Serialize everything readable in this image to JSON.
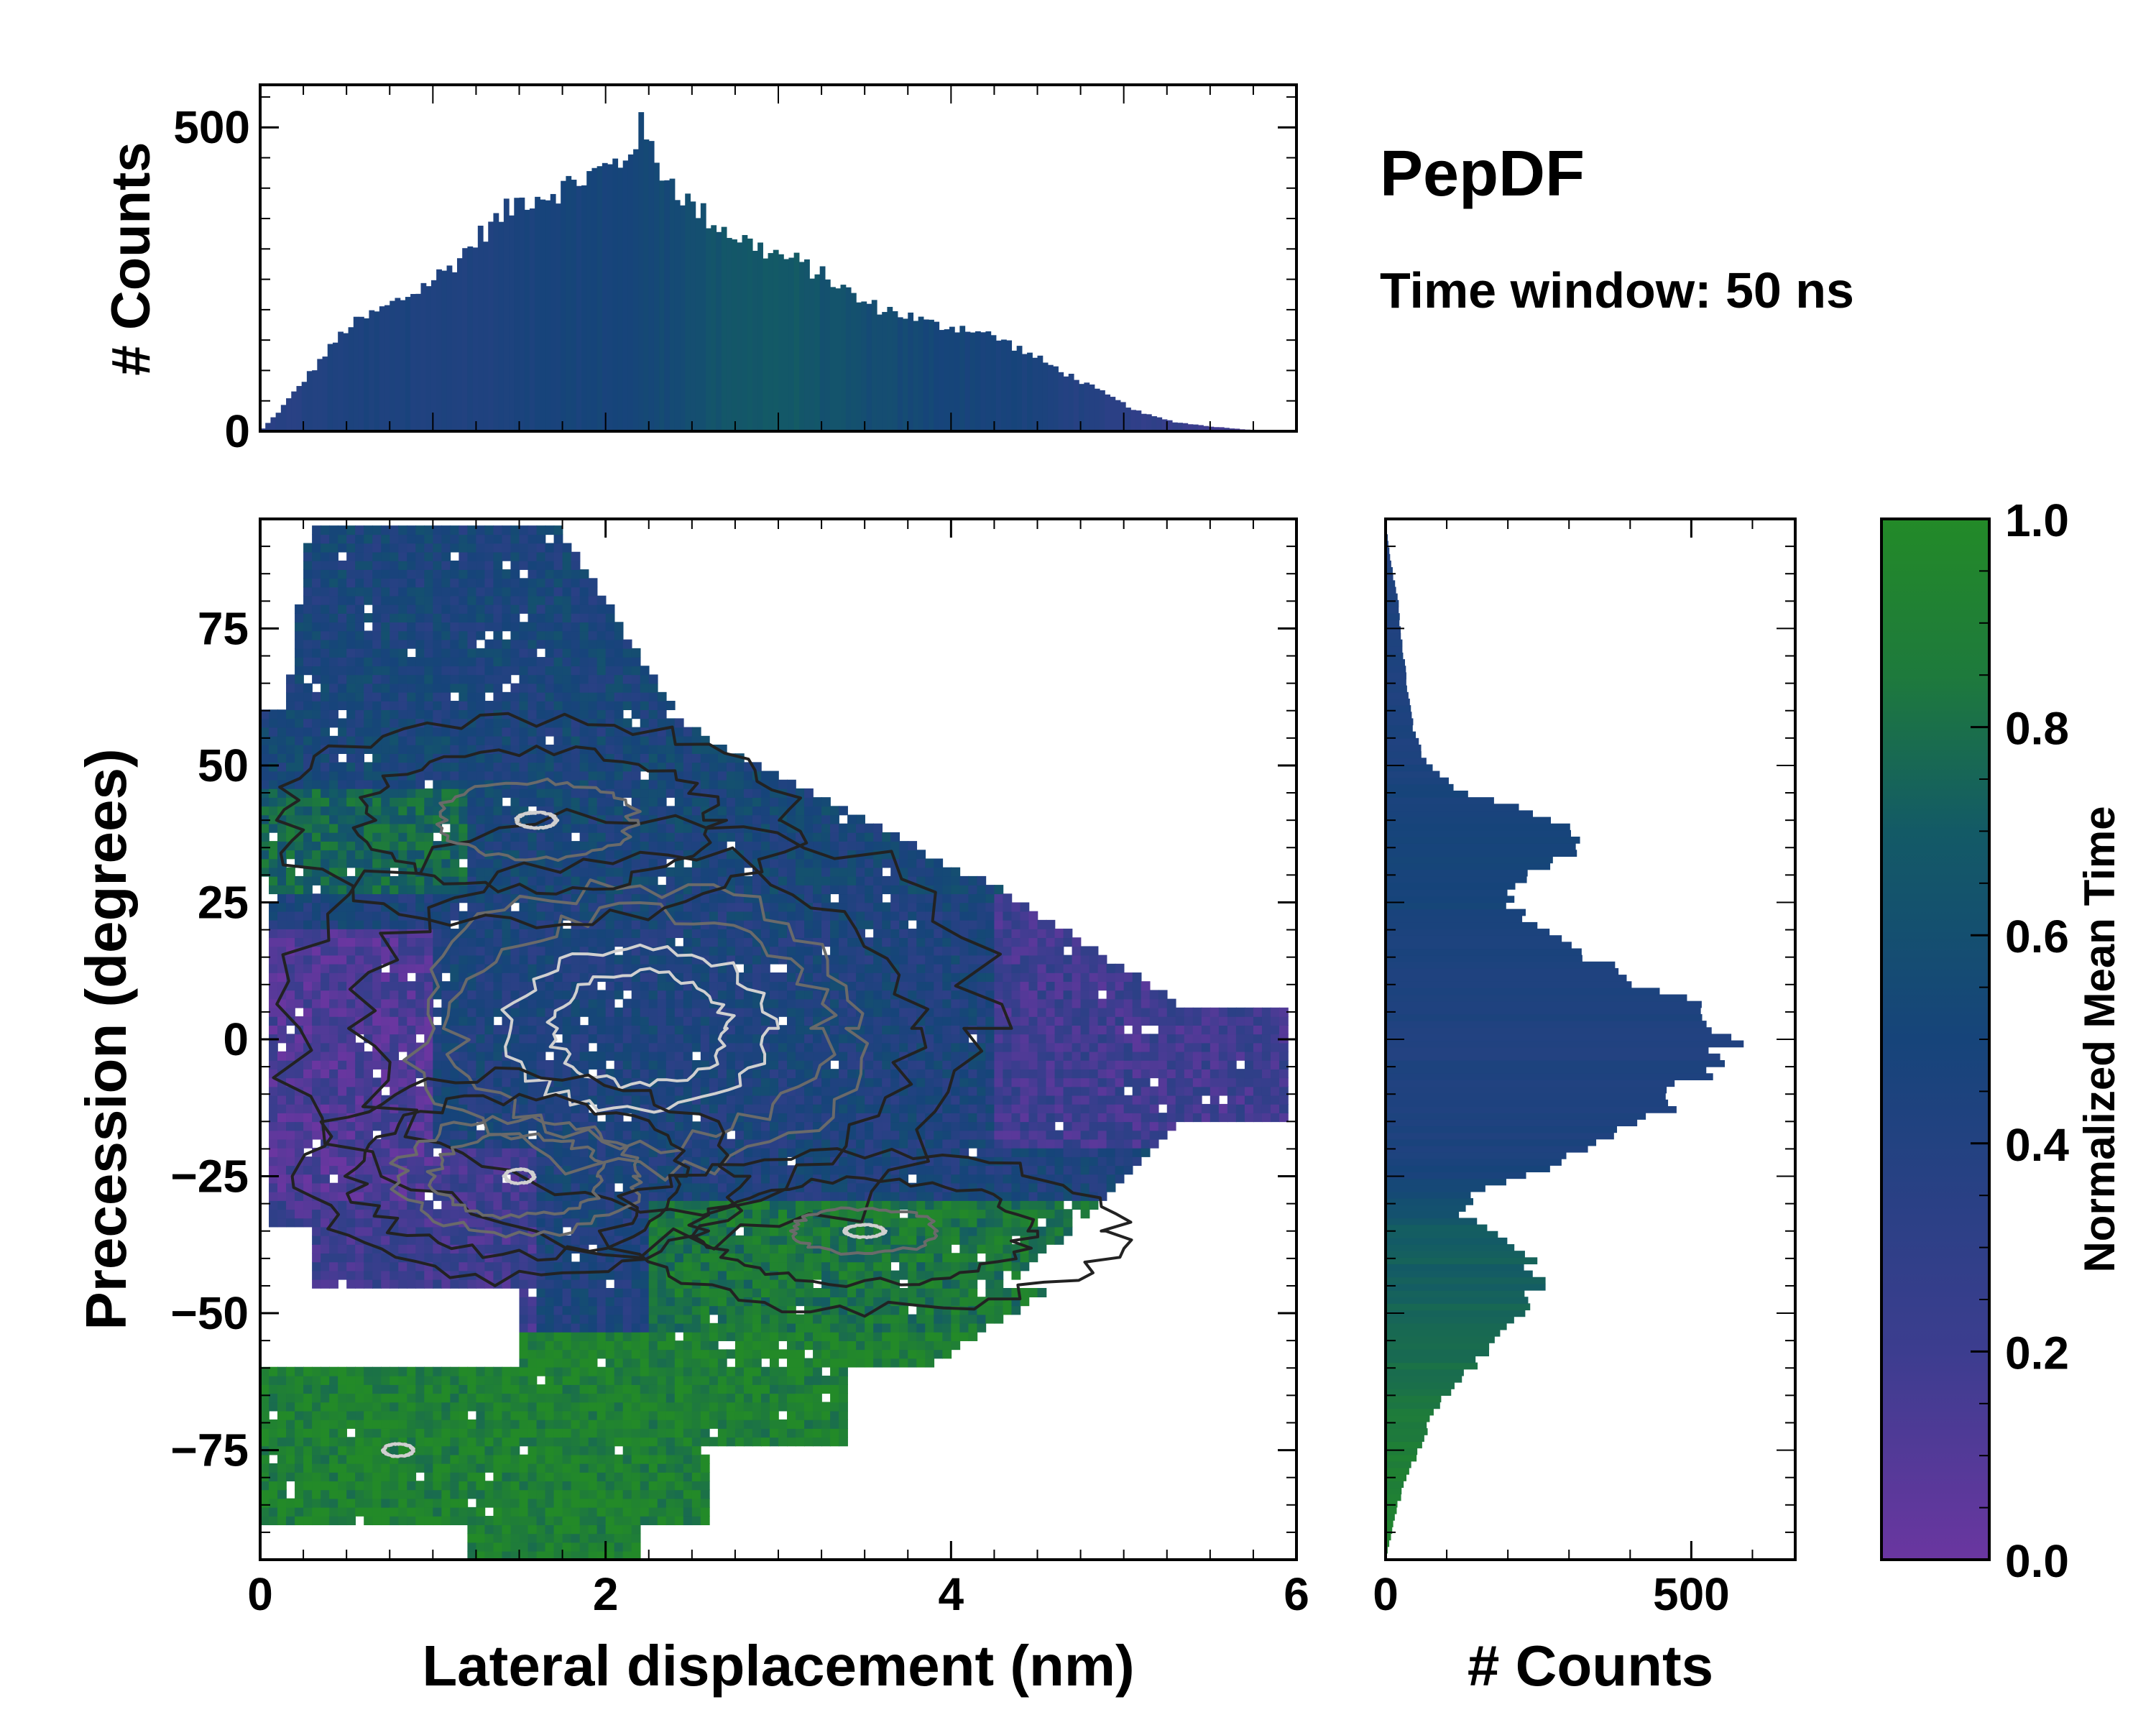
{
  "title": "PepDF",
  "subtitle": "Time window: 50 ns",
  "colors": {
    "cmap": [
      "#6a36a0",
      "#3c3d8f",
      "#16447a",
      "#135a66",
      "#1e7a3c",
      "#238a28"
    ],
    "contour_light": "#d0d0d0",
    "contour_mid": "#6a6a6a",
    "contour_dark": "#222222"
  },
  "chart_data": [
    {
      "type": "heatmap",
      "name": "joint",
      "xlabel": "Lateral displacement (nm)",
      "ylabel": "Precession (degrees)",
      "xlim": [
        0,
        6
      ],
      "ylim": [
        -95,
        95
      ],
      "xticks": [
        0,
        2,
        4,
        6
      ],
      "yticks": [
        -75,
        -50,
        -25,
        0,
        25,
        50,
        75
      ],
      "ytick_labels": [
        "−75",
        "−50",
        "−25",
        "0",
        "25",
        "50",
        "75"
      ],
      "description_of_data": "2D histogram of lateral displacement vs precession, colored by normalized mean time with density contours",
      "density_peaks": [
        {
          "x": 2.2,
          "y": 2,
          "weight": 1.0,
          "sx": 0.9,
          "sy": 18
        },
        {
          "x": 1.5,
          "y": -25,
          "weight": 0.7,
          "sx": 0.6,
          "sy": 9
        },
        {
          "x": 1.6,
          "y": 40,
          "weight": 0.45,
          "sx": 0.8,
          "sy": 10
        },
        {
          "x": 3.5,
          "y": -35,
          "weight": 0.4,
          "sx": 0.8,
          "sy": 8
        },
        {
          "x": 0.8,
          "y": -75,
          "weight": 0.15,
          "sx": 0.6,
          "sy": 8
        }
      ]
    },
    {
      "type": "bar",
      "name": "top-histogram",
      "ylabel": "# Counts",
      "xlim": [
        0,
        6
      ],
      "ylim": [
        0,
        570
      ],
      "yticks": [
        0,
        500
      ],
      "bin_width": 0.03,
      "profile_x": [
        0,
        0.1,
        0.3,
        0.5,
        0.7,
        0.9,
        1.1,
        1.3,
        1.5,
        1.7,
        1.9,
        2.1,
        2.2,
        2.3,
        2.5,
        2.7,
        2.9,
        3.1,
        3.3,
        3.5,
        3.7,
        3.9,
        4.1,
        4.3,
        4.5,
        4.7,
        4.9,
        5.1,
        5.3,
        5.5,
        5.7,
        5.9
      ],
      "profile_counts": [
        0,
        30,
        100,
        170,
        200,
        230,
        270,
        330,
        380,
        395,
        420,
        445,
        500,
        440,
        370,
        330,
        300,
        280,
        250,
        210,
        195,
        175,
        170,
        150,
        120,
        90,
        60,
        30,
        15,
        8,
        3,
        0
      ],
      "profile_time": [
        0.3,
        0.35,
        0.4,
        0.45,
        0.45,
        0.45,
        0.42,
        0.42,
        0.45,
        0.48,
        0.5,
        0.5,
        0.52,
        0.55,
        0.6,
        0.65,
        0.7,
        0.68,
        0.62,
        0.58,
        0.55,
        0.52,
        0.5,
        0.48,
        0.45,
        0.4,
        0.35,
        0.3,
        0.25,
        0.2,
        0.15,
        0.1
      ]
    },
    {
      "type": "bar",
      "name": "right-histogram",
      "xlabel": "# Counts",
      "xlim": [
        0,
        670
      ],
      "xticks": [
        0,
        500
      ],
      "ylim": [
        -95,
        95
      ],
      "bin_width": 1.2,
      "profile_y": [
        -95,
        -90,
        -85,
        -80,
        -75,
        -70,
        -65,
        -60,
        -55,
        -50,
        -45,
        -40,
        -35,
        -32,
        -28,
        -25,
        -20,
        -15,
        -10,
        -5,
        0,
        5,
        10,
        15,
        20,
        25,
        30,
        35,
        40,
        45,
        50,
        55,
        60,
        65,
        70,
        75,
        80,
        85,
        90,
        95
      ],
      "profile_counts": [
        0,
        10,
        20,
        35,
        55,
        70,
        100,
        140,
        180,
        220,
        250,
        235,
        180,
        120,
        150,
        230,
        330,
        430,
        480,
        530,
        580,
        520,
        420,
        330,
        250,
        200,
        230,
        320,
        280,
        130,
        70,
        50,
        40,
        35,
        30,
        25,
        20,
        12,
        5,
        0
      ],
      "profile_time": [
        0.95,
        0.92,
        0.92,
        0.9,
        0.88,
        0.85,
        0.82,
        0.8,
        0.78,
        0.75,
        0.72,
        0.72,
        0.7,
        0.6,
        0.55,
        0.48,
        0.45,
        0.43,
        0.42,
        0.42,
        0.42,
        0.43,
        0.45,
        0.45,
        0.48,
        0.5,
        0.5,
        0.5,
        0.5,
        0.48,
        0.45,
        0.44,
        0.44,
        0.44,
        0.44,
        0.43,
        0.43,
        0.42,
        0.42,
        0.42
      ]
    },
    {
      "type": "colorbar",
      "name": "colorbar",
      "label": "Normalized Mean Time",
      "lim": [
        0,
        1
      ],
      "ticks": [
        "0.0",
        "0.2",
        "0.4",
        "0.6",
        "0.8",
        "1.0"
      ]
    }
  ]
}
